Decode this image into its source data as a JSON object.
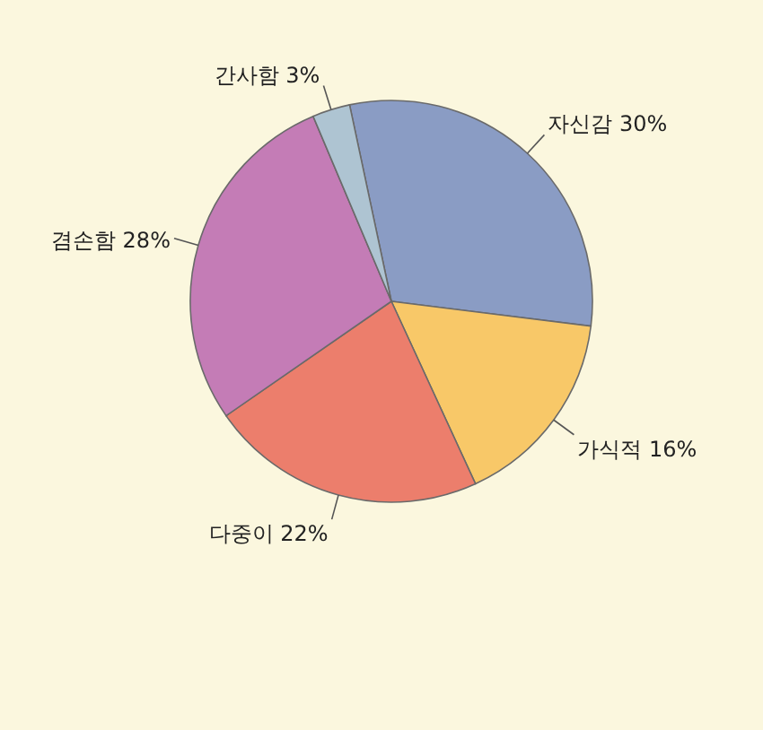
{
  "chart_data": {
    "type": "pie",
    "categories": [
      "자신감",
      "가식적",
      "다중이",
      "겸손함",
      "간사함"
    ],
    "values": [
      30,
      16,
      22,
      28,
      3
    ],
    "value_labels": [
      "30%",
      "16%",
      "22%",
      "28%",
      "3%"
    ],
    "colors": [
      "#8a9cc4",
      "#f8c868",
      "#ec7e6c",
      "#c47cb6",
      "#aec4d2"
    ],
    "legend": false
  }
}
